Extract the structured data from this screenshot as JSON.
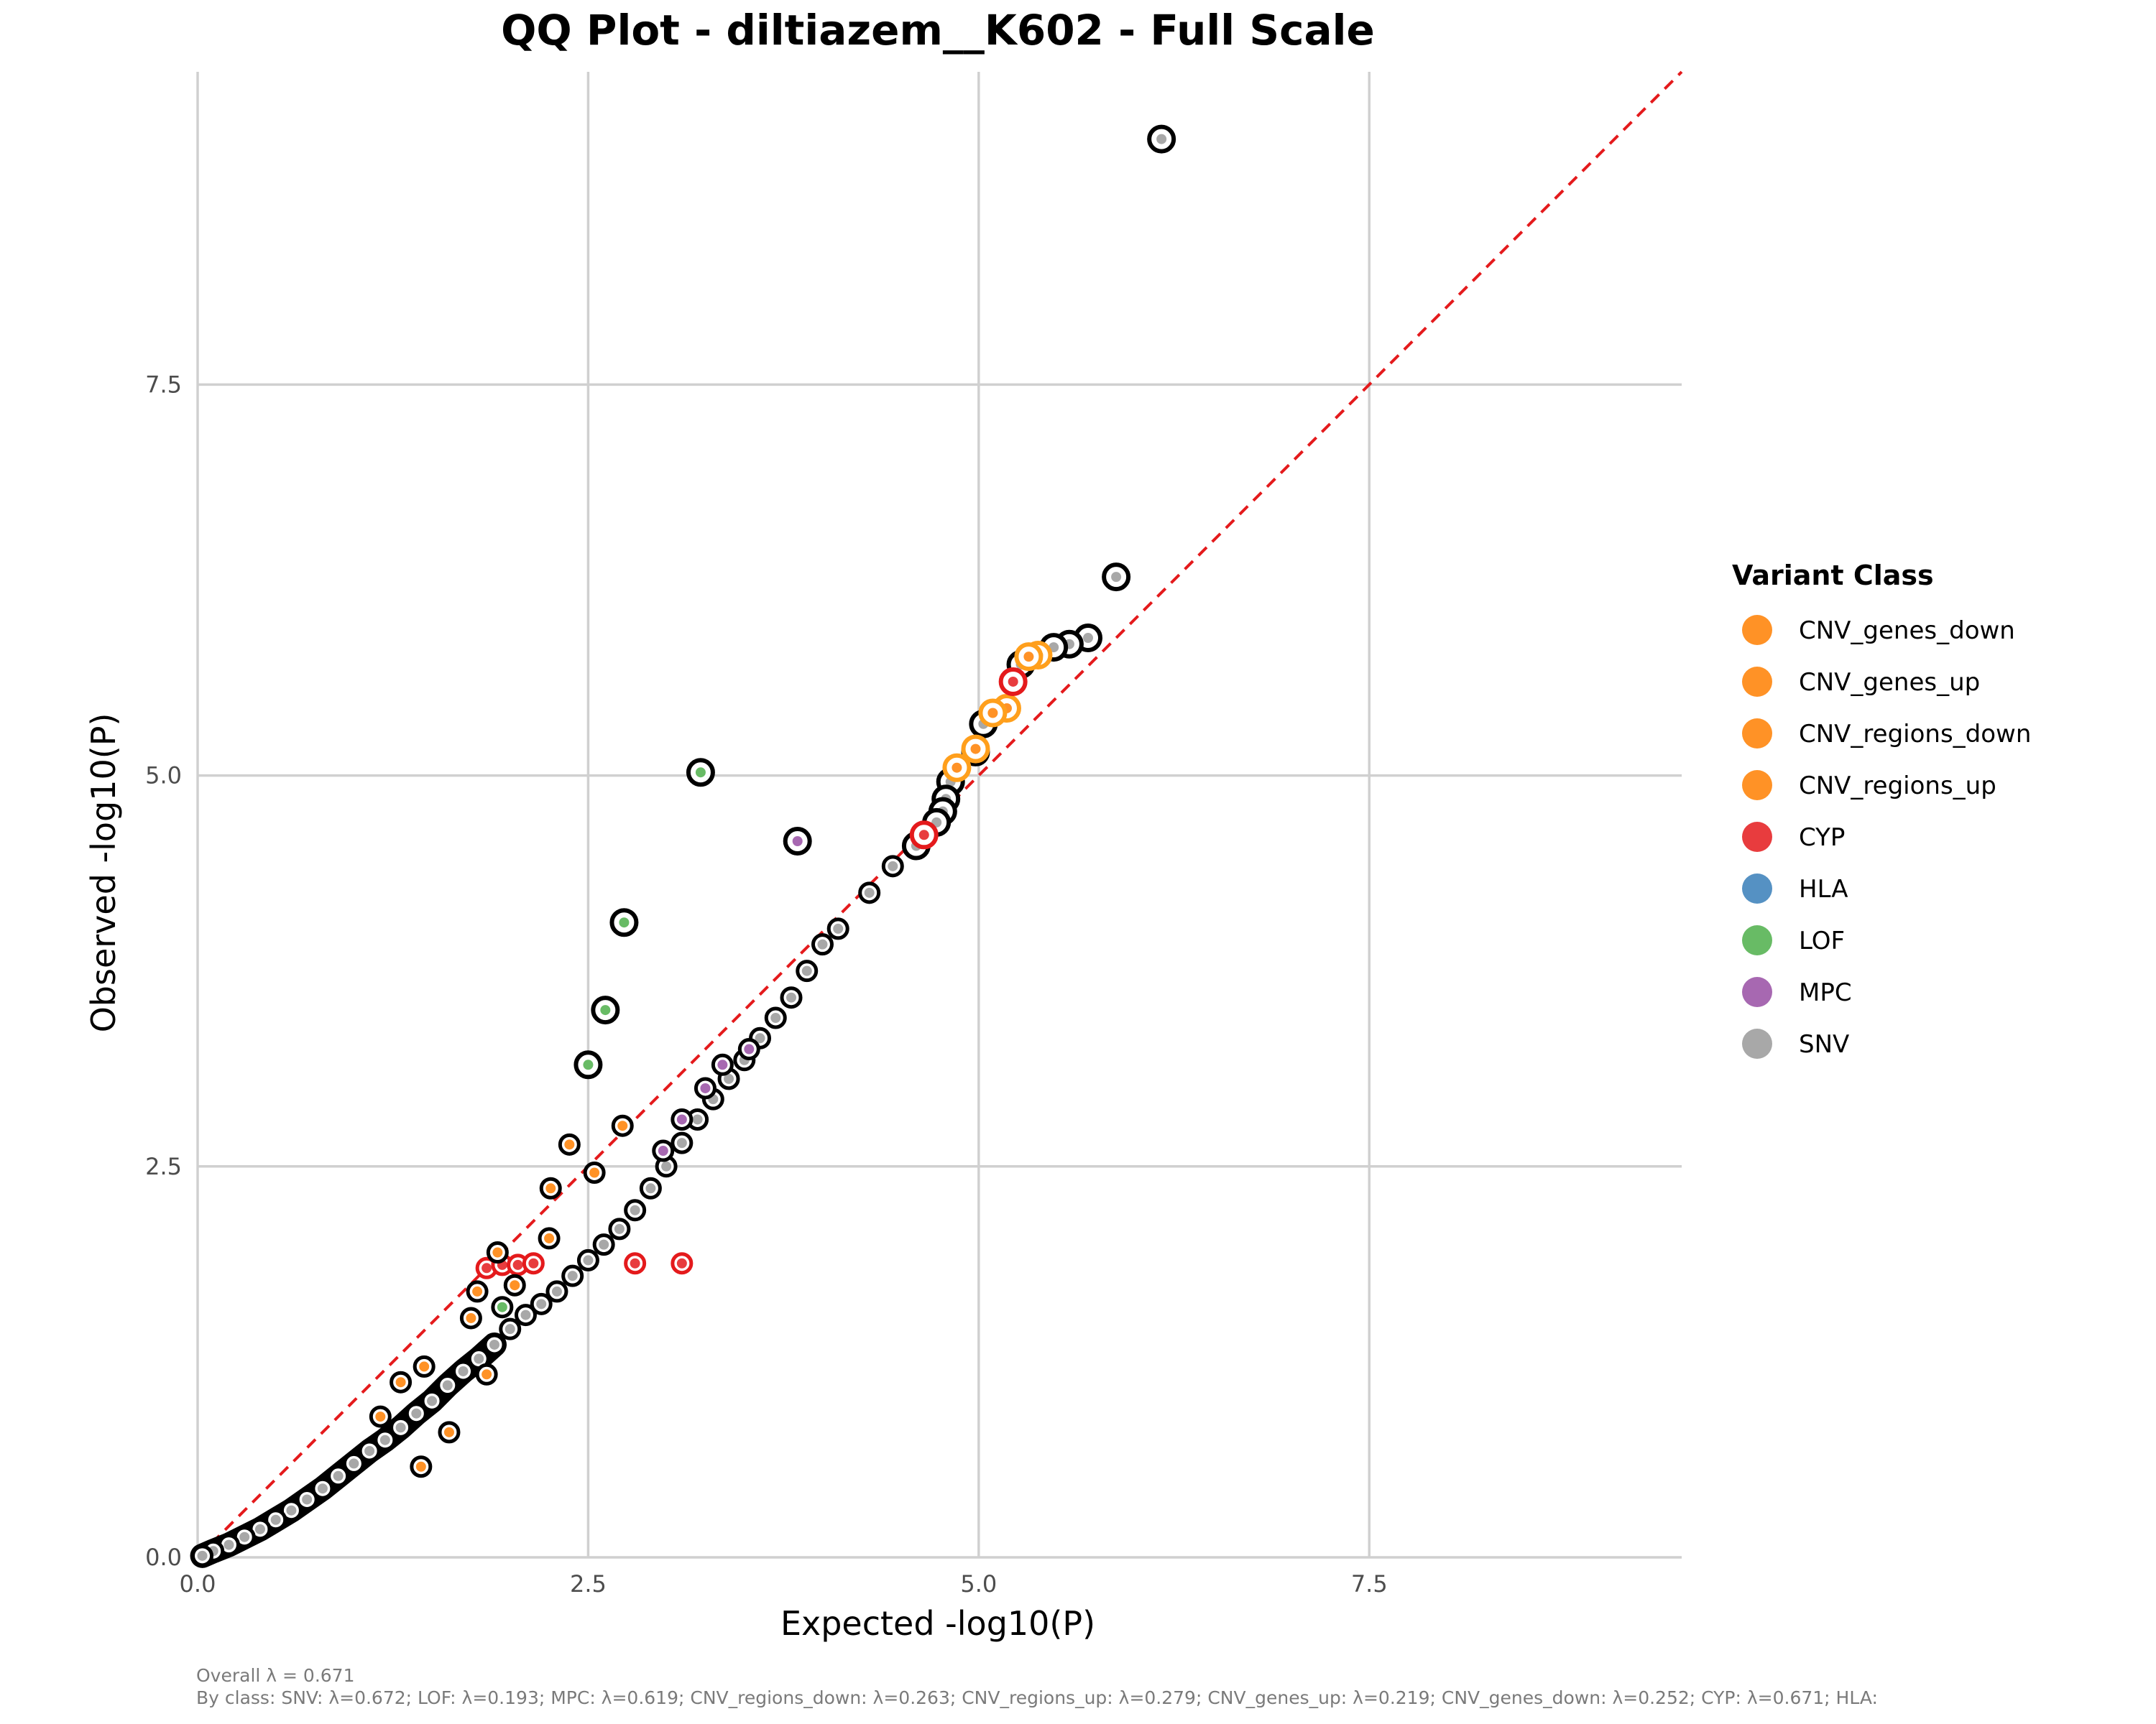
{
  "chart_data": {
    "type": "scatter",
    "title": "QQ Plot - diltiazem__K602 - Full Scale",
    "xlabel": "Expected -log10(P)",
    "ylabel": "Observed -log10(P)",
    "xlim": [
      0,
      9.5
    ],
    "ylim": [
      0,
      9.5
    ],
    "x_ticks": [
      "0.0",
      "2.5",
      "5.0",
      "7.5"
    ],
    "y_ticks": [
      "0.0",
      "2.5",
      "5.0",
      "7.5"
    ],
    "grid": true,
    "reference_line": {
      "type": "y=x",
      "color": "#e41a1c",
      "style": "dashed"
    },
    "legend": {
      "title": "Variant Class",
      "placement": "right",
      "entries": [
        {
          "label": "CNV_genes_down",
          "color": "#ff7f00"
        },
        {
          "label": "CNV_genes_up",
          "color": "#ff7f00"
        },
        {
          "label": "CNV_regions_down",
          "color": "#ff7f00"
        },
        {
          "label": "CNV_regions_up",
          "color": "#ff7f00"
        },
        {
          "label": "CYP",
          "color": "#e41a1c"
        },
        {
          "label": "HLA",
          "color": "#377eb8"
        },
        {
          "label": "LOF",
          "color": "#4daf4a"
        },
        {
          "label": "MPC",
          "color": "#984ea3"
        },
        {
          "label": "SNV",
          "color": "#999999"
        }
      ]
    },
    "series": [
      {
        "name": "SNV",
        "color": "#999999",
        "highlight": "#000000",
        "points": [
          [
            6.17,
            9.07
          ],
          [
            5.88,
            6.27
          ],
          [
            5.7,
            5.88
          ],
          [
            5.58,
            5.84
          ],
          [
            5.48,
            5.82
          ],
          [
            5.27,
            5.71
          ],
          [
            5.03,
            5.33
          ],
          [
            4.98,
            5.15
          ],
          [
            4.82,
            4.96
          ],
          [
            4.79,
            4.85
          ],
          [
            4.77,
            4.77
          ],
          [
            4.73,
            4.7
          ],
          [
            4.6,
            4.55
          ],
          [
            4.45,
            4.42
          ],
          [
            4.3,
            4.25
          ],
          [
            4.1,
            4.02
          ],
          [
            4.0,
            3.92
          ],
          [
            3.9,
            3.75
          ],
          [
            3.8,
            3.58
          ],
          [
            3.7,
            3.45
          ],
          [
            3.6,
            3.32
          ],
          [
            3.5,
            3.18
          ],
          [
            3.4,
            3.06
          ],
          [
            3.3,
            2.93
          ],
          [
            3.2,
            2.8
          ],
          [
            3.1,
            2.65
          ],
          [
            3.0,
            2.5
          ],
          [
            2.9,
            2.36
          ],
          [
            2.8,
            2.22
          ],
          [
            2.7,
            2.1
          ],
          [
            2.6,
            2.0
          ],
          [
            2.5,
            1.9
          ],
          [
            2.4,
            1.8
          ],
          [
            2.3,
            1.7
          ],
          [
            2.2,
            1.62
          ],
          [
            2.1,
            1.55
          ],
          [
            2.0,
            1.46
          ],
          [
            1.9,
            1.36
          ],
          [
            1.8,
            1.27
          ],
          [
            1.7,
            1.19
          ],
          [
            1.6,
            1.1
          ],
          [
            1.5,
            1.0
          ],
          [
            1.4,
            0.92
          ],
          [
            1.3,
            0.83
          ],
          [
            1.2,
            0.75
          ],
          [
            1.1,
            0.68
          ],
          [
            1.0,
            0.6
          ],
          [
            0.9,
            0.52
          ],
          [
            0.8,
            0.44
          ],
          [
            0.7,
            0.37
          ],
          [
            0.6,
            0.3
          ],
          [
            0.5,
            0.24
          ],
          [
            0.4,
            0.18
          ],
          [
            0.3,
            0.13
          ],
          [
            0.2,
            0.08
          ],
          [
            0.1,
            0.04
          ],
          [
            0.03,
            0.01
          ]
        ]
      },
      {
        "name": "LOF",
        "color": "#4daf4a",
        "highlight": "#000000",
        "points": [
          [
            3.22,
            5.02
          ],
          [
            2.73,
            4.06
          ],
          [
            2.61,
            3.5
          ],
          [
            2.5,
            3.15
          ],
          [
            1.95,
            1.6
          ]
        ]
      },
      {
        "name": "MPC",
        "color": "#984ea3",
        "highlight": "#000000",
        "points": [
          [
            3.84,
            4.58
          ],
          [
            3.36,
            3.15
          ],
          [
            3.1,
            2.8
          ],
          [
            3.25,
            3.0
          ],
          [
            2.98,
            2.6
          ],
          [
            3.53,
            3.25
          ]
        ]
      },
      {
        "name": "CNV_regions_down",
        "color": "#ff7f00",
        "highlight": "#ff9f1c",
        "points": [
          [
            5.38,
            5.77
          ],
          [
            5.32,
            5.76
          ],
          [
            5.18,
            5.43
          ],
          [
            5.09,
            5.4
          ],
          [
            4.98,
            5.17
          ],
          [
            4.86,
            5.05
          ]
        ]
      },
      {
        "name": "CNV_genes_up",
        "color": "#ff7f00",
        "highlight": "#000000",
        "points": [
          [
            2.72,
            2.76
          ],
          [
            2.26,
            2.36
          ],
          [
            2.54,
            2.46
          ],
          [
            2.38,
            2.64
          ],
          [
            1.43,
            0.58
          ],
          [
            1.61,
            0.8
          ],
          [
            1.17,
            0.9
          ]
        ]
      },
      {
        "name": "CYP",
        "color": "#e41a1c",
        "highlight": "#e41a1c",
        "points": [
          [
            5.22,
            5.6
          ],
          [
            4.65,
            4.62
          ],
          [
            2.8,
            1.88
          ],
          [
            3.1,
            1.88
          ],
          [
            1.85,
            1.85
          ],
          [
            1.95,
            1.87
          ],
          [
            2.05,
            1.87
          ],
          [
            2.15,
            1.88
          ]
        ]
      },
      {
        "name": "CNV_genes_down",
        "color": "#ff7f00",
        "highlight": "#000000",
        "points": [
          [
            1.3,
            1.12
          ],
          [
            1.45,
            1.22
          ],
          [
            1.75,
            1.53
          ],
          [
            2.03,
            1.74
          ],
          [
            2.25,
            2.04
          ],
          [
            1.92,
            1.95
          ],
          [
            1.79,
            1.7
          ],
          [
            1.85,
            1.17
          ]
        ]
      }
    ]
  },
  "caption": {
    "line1": "Overall λ = 0.671",
    "line2": "By class: SNV: λ=0.672; LOF: λ=0.193; MPC: λ=0.619; CNV_regions_down: λ=0.263; CNV_regions_up: λ=0.279; CNV_genes_up: λ=0.219; CNV_genes_down: λ=0.252; CYP: λ=0.671; HLA:"
  }
}
